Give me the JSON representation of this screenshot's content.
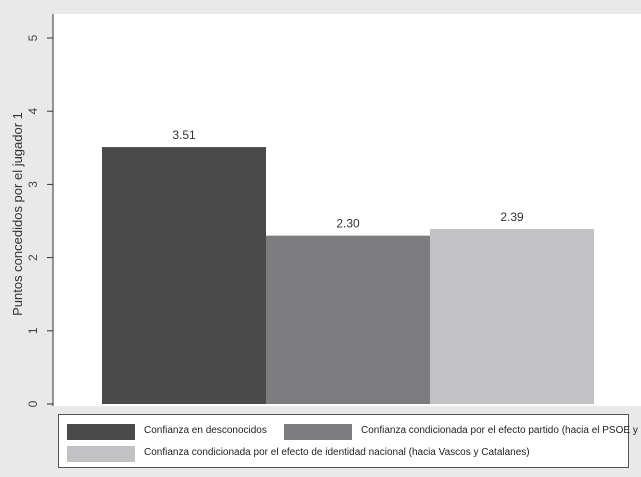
{
  "chart_data": {
    "type": "bar",
    "title": "",
    "xlabel": "",
    "ylabel": "Puntos concedidos por el jugador 1",
    "ylim": [
      0,
      5
    ],
    "yticks": [
      0,
      1,
      2,
      3,
      4,
      5
    ],
    "grid": false,
    "legend_position": "bottom",
    "series": [
      {
        "name": "Confianza en desconocidos",
        "value": 3.51,
        "label": "3.51",
        "color": "#4a4a4a"
      },
      {
        "name": "Confianza condicionada por el efecto partido (hacia el PSOE y PP)",
        "value": 2.3,
        "label": "2.30",
        "color": "#7d7d7f"
      },
      {
        "name": "Confianza condicionada por el efecto de identidad nacional (hacia Vascos y Catalanes)",
        "value": 2.39,
        "label": "2.39",
        "color": "#c2c2c4"
      }
    ]
  }
}
